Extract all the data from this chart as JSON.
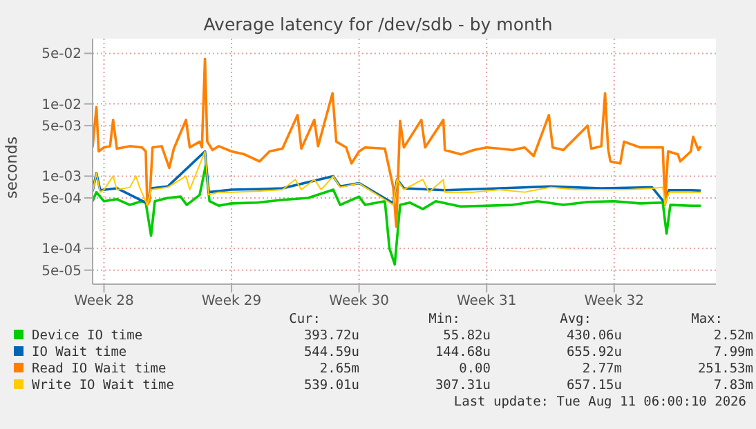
{
  "chart_data": {
    "type": "line",
    "title": "Average latency for /dev/sdb - by month",
    "ylabel": "seconds",
    "log": "y",
    "grid": true,
    "legend": "bottom",
    "marker": "none",
    "line_style": "solid",
    "xlim": [
      "2026-07-05T09:00",
      "2026-08-08T14:00"
    ],
    "xticks": [
      {
        "value": "2026-07-06",
        "label": "Week 28"
      },
      {
        "value": "2026-07-13",
        "label": "Week 29"
      },
      {
        "value": "2026-07-20",
        "label": "Week 30"
      },
      {
        "value": "2026-07-27",
        "label": "Week 31"
      },
      {
        "value": "2026-08-03",
        "label": "Week 32"
      }
    ],
    "ylim": [
      3.2e-05,
      0.08
    ],
    "yticks": [
      {
        "value": 5e-05,
        "label": "5e-05"
      },
      {
        "value": 0.0001,
        "label": "1e-04"
      },
      {
        "value": 0.0005,
        "label": "5e-04"
      },
      {
        "value": 0.001,
        "label": "1e-03"
      },
      {
        "value": 0.005,
        "label": "5e-03"
      },
      {
        "value": 0.01,
        "label": "1e-02"
      },
      {
        "value": 0.05,
        "label": "5e-02"
      }
    ],
    "series": [
      {
        "name": "Device IO time",
        "color": "#00cc00",
        "x": [
          "2026-07-05T09:00",
          "2026-07-05T14:00",
          "2026-07-06T00:00",
          "2026-07-06T17:00",
          "2026-07-07T10:00",
          "2026-07-08T02:00",
          "2026-07-08T07:00",
          "2026-07-08T14:00",
          "2026-07-08T19:00",
          "2026-07-09T12:00",
          "2026-07-10T05:00",
          "2026-07-10T13:00",
          "2026-07-11T06:00",
          "2026-07-11T14:00",
          "2026-07-11T19:00",
          "2026-07-12T07:00",
          "2026-07-13T00:00",
          "2026-07-14T10:00",
          "2026-07-15T19:00",
          "2026-07-17T05:00",
          "2026-07-18T14:00",
          "2026-07-18T23:00",
          "2026-07-20T00:00",
          "2026-07-20T08:00",
          "2026-07-21T10:00",
          "2026-07-21T16:00",
          "2026-07-21T23:00",
          "2026-07-22T06:00",
          "2026-07-22T19:00",
          "2026-07-23T12:00",
          "2026-07-24T05:00",
          "2026-07-25T14:00",
          "2026-07-27T00:00",
          "2026-07-28T10:00",
          "2026-07-29T19:00",
          "2026-07-31T05:00",
          "2026-08-01T14:00",
          "2026-08-03T00:00",
          "2026-08-04T10:00",
          "2026-08-05T16:00",
          "2026-08-05T21:00",
          "2026-08-06T02:00",
          "2026-08-07T05:00",
          "2026-08-07T18:00"
        ],
        "values": [
          0.00045,
          0.0006,
          0.00045,
          0.00048,
          0.0004,
          0.00045,
          0.00043,
          0.00015,
          0.00045,
          0.0005,
          0.00052,
          0.0004,
          0.00055,
          0.0014,
          0.00045,
          0.00039,
          0.00042,
          0.00043,
          0.00047,
          0.0005,
          0.00065,
          0.0004,
          0.00052,
          0.0004,
          0.00045,
          0.0001,
          6e-05,
          0.0004,
          0.00043,
          0.00035,
          0.00045,
          0.00038,
          0.00039,
          0.0004,
          0.00045,
          0.0004,
          0.00044,
          0.00045,
          0.00042,
          0.00043,
          0.00016,
          0.0004,
          0.00039,
          0.00039
        ]
      },
      {
        "name": "IO Wait time",
        "color": "#0066b3",
        "x": [
          "2026-07-05T09:00",
          "2026-07-05T14:00",
          "2026-07-05T19:00",
          "2026-07-06T17:00",
          "2026-07-08T09:00",
          "2026-07-08T14:00",
          "2026-07-09T12:00",
          "2026-07-11T13:00",
          "2026-07-11T18:00",
          "2026-07-13T00:00",
          "2026-07-14T10:00",
          "2026-07-15T19:00",
          "2026-07-18T14:00",
          "2026-07-18T23:00",
          "2026-07-20T00:00",
          "2026-07-21T21:00",
          "2026-07-22T02:00",
          "2026-07-22T11:00",
          "2026-07-24T17:00",
          "2026-07-27T17:00",
          "2026-07-30T12:00",
          "2026-08-02T07:00",
          "2026-08-05T02:00",
          "2026-08-05T19:00",
          "2026-08-06T00:00",
          "2026-08-07T05:00",
          "2026-08-07T18:00"
        ],
        "values": [
          0.00062,
          0.0011,
          0.00064,
          0.00068,
          0.00042,
          0.00068,
          0.00072,
          0.0022,
          0.0006,
          0.00065,
          0.00066,
          0.00068,
          0.001,
          0.00072,
          0.0008,
          0.00042,
          0.0009,
          0.00068,
          0.00064,
          0.00068,
          0.00072,
          0.00068,
          0.0007,
          0.00042,
          0.00064,
          0.00064,
          0.00063
        ]
      },
      {
        "name": "Read IO Wait time",
        "color": "#ff8000",
        "x": [
          "2026-07-05T09:00",
          "2026-07-05T14:00",
          "2026-07-05T17:00",
          "2026-07-06T00:00",
          "2026-07-06T08:00",
          "2026-07-06T12:00",
          "2026-07-06T17:00",
          "2026-07-07T10:00",
          "2026-07-08T02:00",
          "2026-07-08T07:00",
          "2026-07-08T09:00",
          "2026-07-08T12:00",
          "2026-07-08T16:00",
          "2026-07-09T04:00",
          "2026-07-09T14:00",
          "2026-07-09T20:00",
          "2026-07-10T12:00",
          "2026-07-10T17:00",
          "2026-07-11T06:00",
          "2026-07-11T09:00",
          "2026-07-11T13:00",
          "2026-07-11T16:00",
          "2026-07-11T23:00",
          "2026-07-12T07:00",
          "2026-07-13T00:00",
          "2026-07-13T17:00",
          "2026-07-14T13:00",
          "2026-07-15T02:00",
          "2026-07-15T19:00",
          "2026-07-16T15:00",
          "2026-07-16T20:00",
          "2026-07-17T13:00",
          "2026-07-17T18:00",
          "2026-07-18T13:00",
          "2026-07-18T18:00",
          "2026-07-19T07:00",
          "2026-07-19T14:00",
          "2026-07-20T00:00",
          "2026-07-20T08:00",
          "2026-07-21T10:00",
          "2026-07-21T21:00",
          "2026-07-22T01:00",
          "2026-07-22T06:00",
          "2026-07-22T11:00",
          "2026-07-23T10:00",
          "2026-07-23T15:00",
          "2026-07-24T15:00",
          "2026-07-24T17:00",
          "2026-07-25T14:00",
          "2026-07-26T07:00",
          "2026-07-27T00:00",
          "2026-07-27T17:00",
          "2026-07-28T10:00",
          "2026-07-29T02:00",
          "2026-07-29T14:00",
          "2026-07-30T10:00",
          "2026-07-30T15:00",
          "2026-07-31T05:00",
          "2026-08-01T13:00",
          "2026-08-01T18:00",
          "2026-08-02T07:00",
          "2026-08-02T12:00",
          "2026-08-02T16:00",
          "2026-08-02T19:00",
          "2026-08-03T08:00",
          "2026-08-03T13:00",
          "2026-08-04T10:00",
          "2026-08-05T02:00",
          "2026-08-05T16:00",
          "2026-08-05T19:00",
          "2026-08-05T23:00",
          "2026-08-06T12:00",
          "2026-08-06T15:00",
          "2026-08-07T05:00",
          "2026-08-07T08:00",
          "2026-08-07T15:00",
          "2026-08-07T18:00"
        ],
        "values": [
          0.0025,
          0.009,
          0.0022,
          0.0025,
          0.0026,
          0.006,
          0.0024,
          0.0026,
          0.0025,
          0.0022,
          0.0004,
          0.00045,
          0.0025,
          0.0026,
          0.0013,
          0.0024,
          0.006,
          0.0025,
          0.003,
          0.0025,
          0.042,
          0.003,
          0.0023,
          0.0026,
          0.0022,
          0.002,
          0.0016,
          0.0022,
          0.0024,
          0.007,
          0.0024,
          0.006,
          0.0026,
          0.014,
          0.003,
          0.0025,
          0.0015,
          0.0022,
          0.0025,
          0.0024,
          0.0007,
          0.0002,
          0.0058,
          0.0025,
          0.006,
          0.0025,
          0.006,
          0.0023,
          0.002,
          0.0023,
          0.0025,
          0.0024,
          0.0023,
          0.0025,
          0.0019,
          0.007,
          0.0025,
          0.0023,
          0.005,
          0.0024,
          0.0026,
          0.014,
          0.0024,
          0.0016,
          0.0015,
          0.003,
          0.0025,
          0.0025,
          0.0025,
          0.0004,
          0.0022,
          0.002,
          0.0016,
          0.0022,
          0.0035,
          0.0023,
          0.0026
        ]
      },
      {
        "name": "Write IO Wait time",
        "color": "#ffcc00",
        "x": [
          "2026-07-05T09:00",
          "2026-07-05T14:00",
          "2026-07-05T19:00",
          "2026-07-06T00:00",
          "2026-07-06T12:00",
          "2026-07-06T17:00",
          "2026-07-07T10:00",
          "2026-07-07T18:00",
          "2026-07-07T23:00",
          "2026-07-08T09:00",
          "2026-07-08T14:00",
          "2026-07-09T12:00",
          "2026-07-10T12:00",
          "2026-07-10T17:00",
          "2026-07-11T13:00",
          "2026-07-11T18:00",
          "2026-07-12T07:00",
          "2026-07-13T00:00",
          "2026-07-14T10:00",
          "2026-07-15T19:00",
          "2026-07-16T12:00",
          "2026-07-16T20:00",
          "2026-07-17T13:00",
          "2026-07-17T22:00",
          "2026-07-18T14:00",
          "2026-07-18T23:00",
          "2026-07-20T00:00",
          "2026-07-20T08:00",
          "2026-07-21T21:00",
          "2026-07-22T02:00",
          "2026-07-22T11:00",
          "2026-07-23T12:00",
          "2026-07-23T20:00",
          "2026-07-24T15:00",
          "2026-07-24T17:00",
          "2026-07-26T07:00",
          "2026-07-27T17:00",
          "2026-07-29T02:00",
          "2026-07-30T12:00",
          "2026-07-31T22:00",
          "2026-08-02T07:00",
          "2026-08-03T17:00",
          "2026-08-05T02:00",
          "2026-08-05T16:00",
          "2026-08-05T19:00",
          "2026-08-06T00:00",
          "2026-08-07T05:00",
          "2026-08-07T18:00"
        ],
        "values": [
          0.0006,
          0.0011,
          0.0006,
          0.00065,
          0.001,
          0.00065,
          0.0007,
          0.001,
          0.0007,
          0.0004,
          0.00065,
          0.0007,
          0.001,
          0.00065,
          0.0022,
          0.00055,
          0.0006,
          0.0006,
          0.00062,
          0.00065,
          0.0009,
          0.00065,
          0.0009,
          0.00065,
          0.001,
          0.0007,
          0.0008,
          0.0007,
          0.0004,
          0.0009,
          0.00065,
          0.0009,
          0.0006,
          0.0009,
          0.0006,
          0.0006,
          0.00065,
          0.0006,
          0.0007,
          0.00065,
          0.00065,
          0.00065,
          0.00068,
          0.0007,
          0.0004,
          0.0006,
          0.0006,
          0.0006
        ]
      }
    ],
    "annotations": [
      "Cur:",
      "Min:",
      "Avg:",
      "Max:",
      "393.72u",
      "55.82u",
      "430.06u",
      "2.52m",
      "544.59u",
      "144.68u",
      "655.92u",
      "7.99m",
      "2.65m",
      "0.00",
      "2.77m",
      "251.53m",
      "539.01u",
      "307.31u",
      "657.15u",
      "7.83m",
      "Last update: Tue Aug 11 06:00:10 2026"
    ]
  }
}
